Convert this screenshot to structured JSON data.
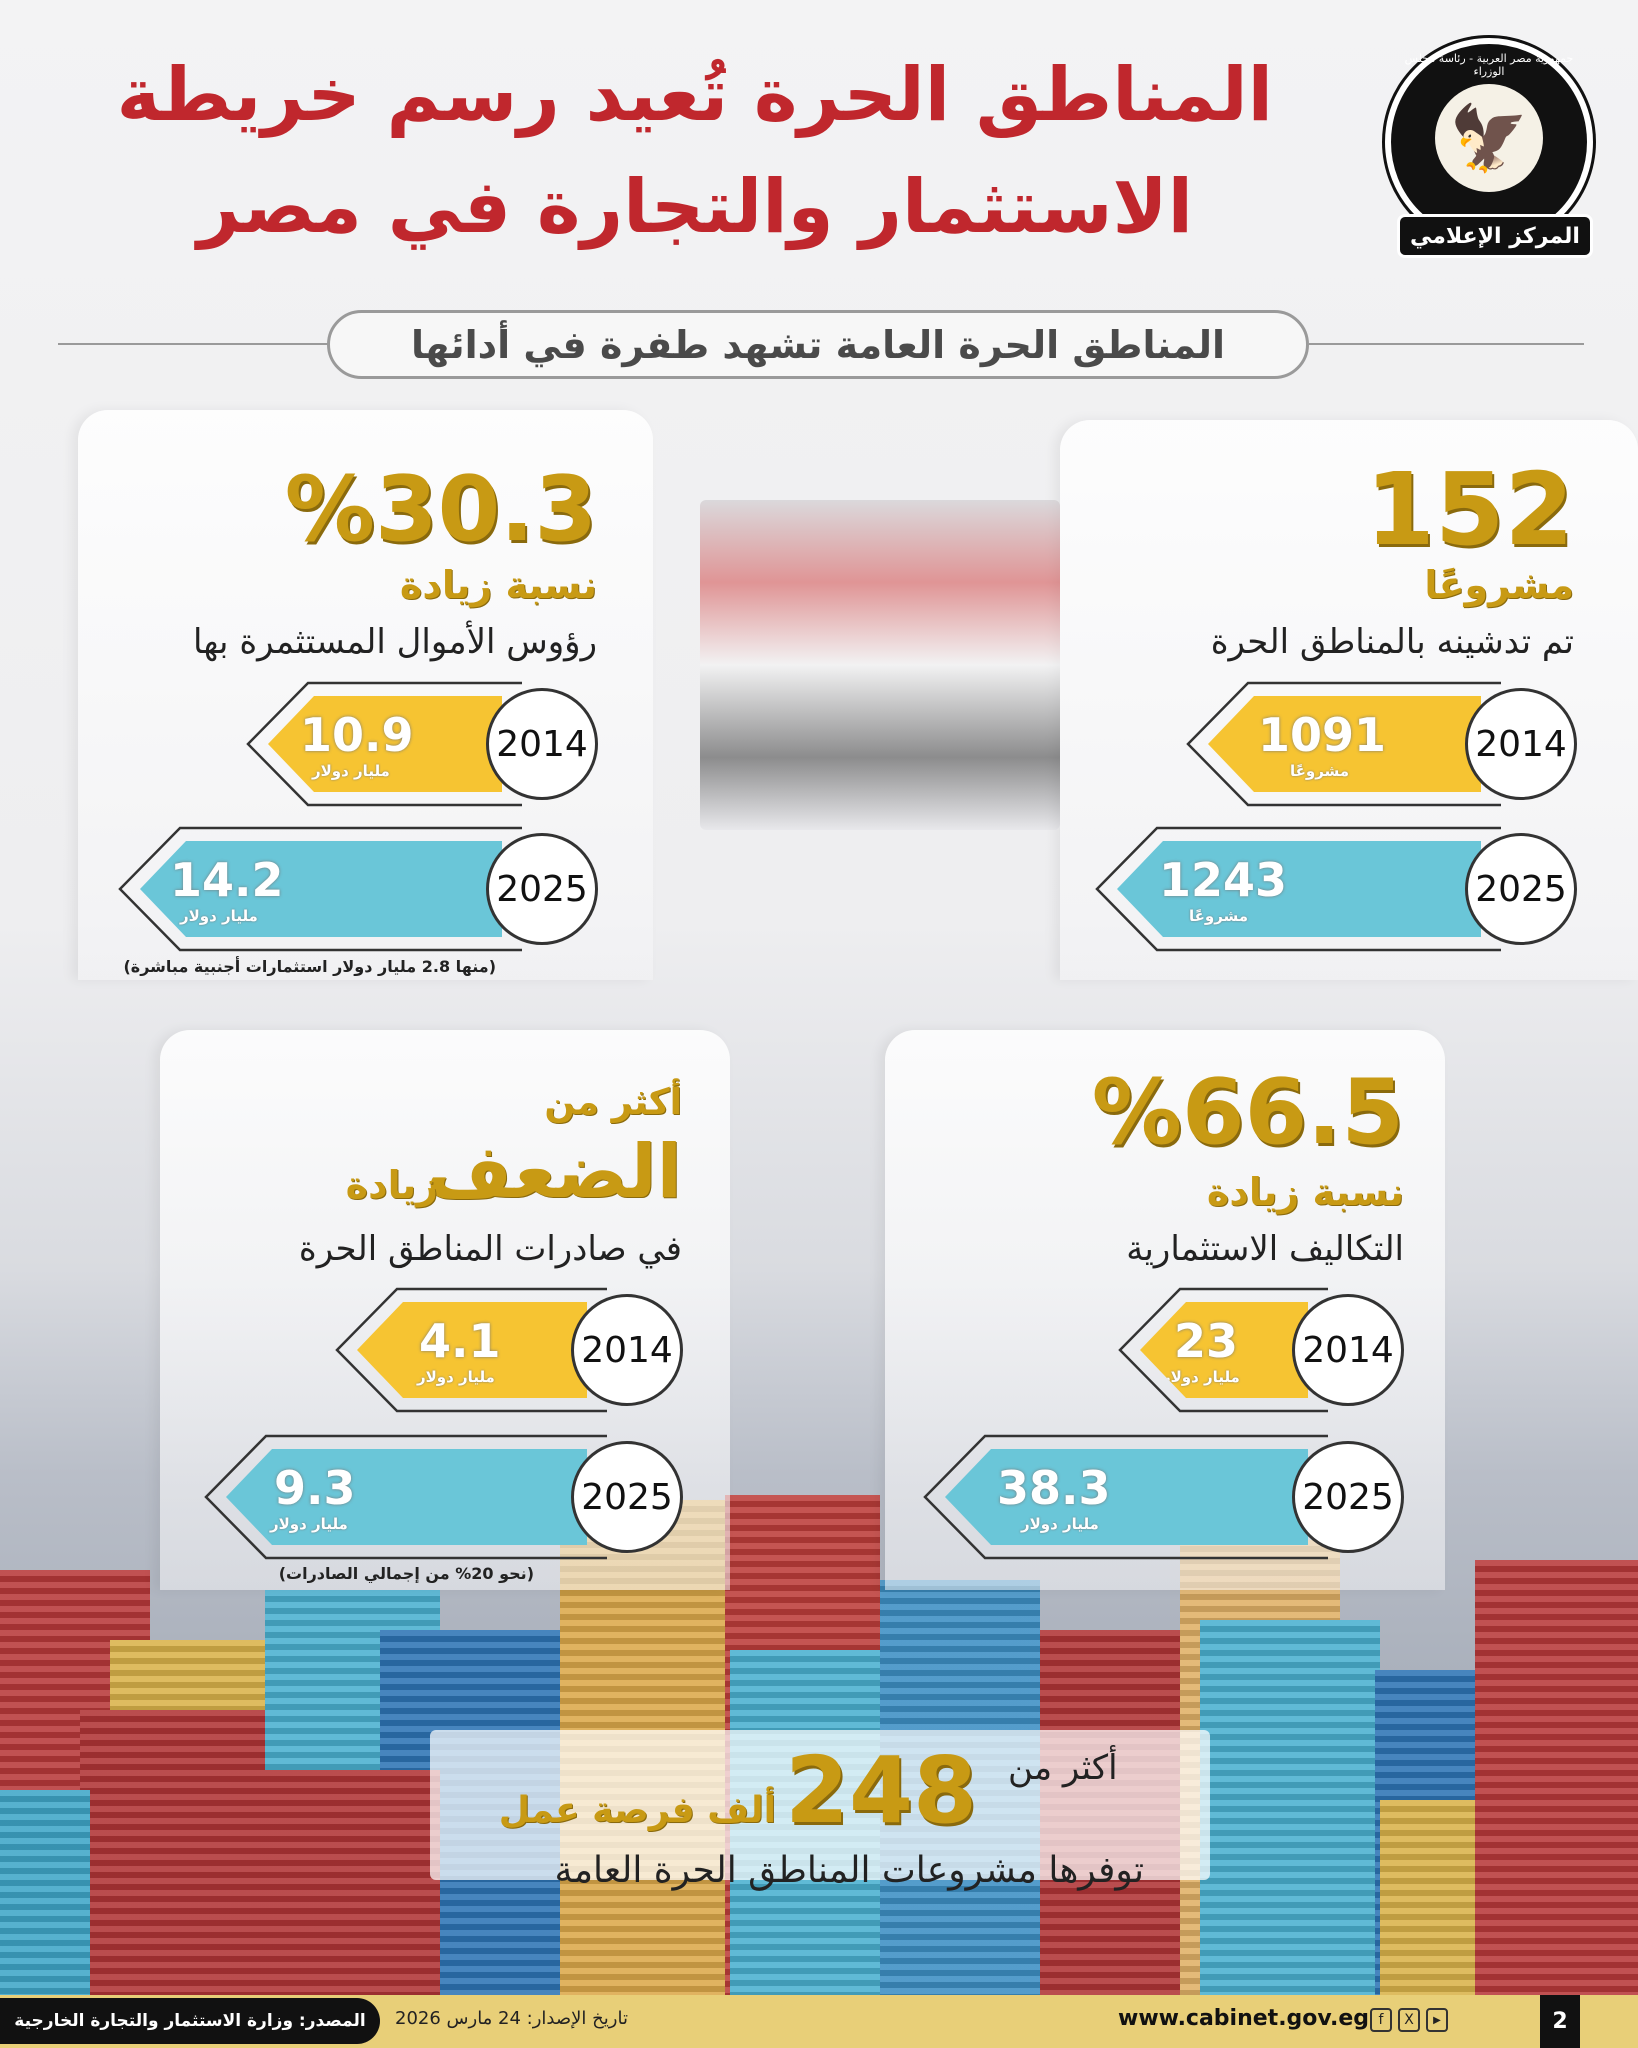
{
  "header": {
    "title_line1": "المناطق الحرة تُعيد رسم خريطة",
    "title_line2": "الاستثمار والتجارة في مصر",
    "subtitle": "المناطق الحرة العامة تشهد طفرة في أدائها",
    "logo": {
      "ring_text": "جمهورية مصر العربية - رئاسة مجلس الوزراء",
      "banner": "المركز الإعلامي",
      "icon": "eagle-emblem"
    }
  },
  "colors": {
    "title_red": "#c0272d",
    "gold": "#c89a14",
    "bar_yellow": "#f6c432",
    "bar_blue": "#6ac6d8",
    "footer": "#e8cf78"
  },
  "cards": [
    {
      "headline": "152",
      "line1": "مشروعًا",
      "line2": "تم تدشينه بالمناطق الحرة",
      "rows": [
        {
          "year": "2014",
          "value": "1091",
          "unit": "مشروعًا"
        },
        {
          "year": "2025",
          "value": "1243",
          "unit": "مشروعًا"
        }
      ]
    },
    {
      "headline": "%30.3",
      "line1": "نسبة زيادة",
      "line2": "رؤوس الأموال المستثمرة بها",
      "rows": [
        {
          "year": "2014",
          "value": "10.9",
          "unit": "مليار دولار"
        },
        {
          "year": "2025",
          "value": "14.2",
          "unit": "مليار دولار"
        }
      ],
      "note": "(منها 2.8 مليار دولار استثمارات أجنبية مباشرة)"
    },
    {
      "headline": "%66.5",
      "line1": "نسبة زيادة",
      "line2": "التكاليف الاستثمارية",
      "rows": [
        {
          "year": "2014",
          "value": "23",
          "unit": "مليار دولار"
        },
        {
          "year": "2025",
          "value": "38.3",
          "unit": "مليار دولار"
        }
      ]
    },
    {
      "pre": "أكثر من",
      "headline": "الضعف",
      "headline_suffix": "زيادة",
      "line2": "في صادرات المناطق الحرة",
      "rows": [
        {
          "year": "2014",
          "value": "4.1",
          "unit": "مليار دولار"
        },
        {
          "year": "2025",
          "value": "9.3",
          "unit": "مليار دولار"
        }
      ],
      "note": "(نحو 20% من إجمالي الصادرات)"
    }
  ],
  "jobs": {
    "pre": "أكثر من",
    "number": "248",
    "suffix": "ألف فرصة عمل",
    "line": "توفرها مشروعات المناطق الحرة العامة"
  },
  "footer": {
    "source": "المصدر: وزارة الاستثمار والتجارة الخارجية",
    "date": "تاريخ الإصدار: 24 مارس 2026",
    "website": "www.cabinet.gov.eg",
    "social": [
      "f",
      "X",
      "▶"
    ],
    "page": "2"
  }
}
